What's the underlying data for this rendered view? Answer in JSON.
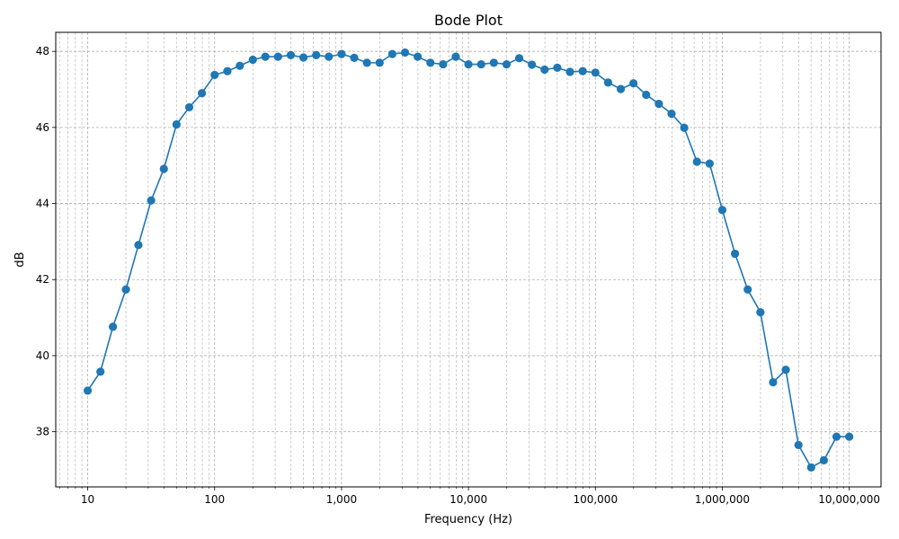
{
  "chart_data": {
    "type": "line",
    "title": "Bode Plot",
    "xlabel": "Frequency (Hz)",
    "ylabel": "dB",
    "xscale": "log",
    "xlim": [
      5.6,
      17800000
    ],
    "ylim": [
      36.55,
      48.5
    ],
    "grid": true,
    "x_ticks": [
      {
        "value": 10,
        "label": "10"
      },
      {
        "value": 100,
        "label": "100"
      },
      {
        "value": 1000,
        "label": "1,000"
      },
      {
        "value": 10000,
        "label": "10,000"
      },
      {
        "value": 100000,
        "label": "100,000"
      },
      {
        "value": 1000000,
        "label": "1,000,000"
      },
      {
        "value": 10000000,
        "label": "10,000,000"
      }
    ],
    "y_ticks": [
      {
        "value": 38,
        "label": "38"
      },
      {
        "value": 40,
        "label": "40"
      },
      {
        "value": 42,
        "label": "42"
      },
      {
        "value": 44,
        "label": "44"
      },
      {
        "value": 46,
        "label": "46"
      },
      {
        "value": 48,
        "label": "48"
      }
    ],
    "series": [
      {
        "color": "#1f77b4",
        "marker": "circle",
        "x": [
          10,
          12.6,
          15.8,
          20,
          25.1,
          31.6,
          39.8,
          50.1,
          63.1,
          79.4,
          100,
          126,
          158,
          200,
          251,
          316,
          398,
          501,
          631,
          794,
          1000,
          1259,
          1585,
          1995,
          2512,
          3162,
          3981,
          5012,
          6310,
          7943,
          10000,
          12589,
          15849,
          19953,
          25119,
          31623,
          39811,
          50119,
          63096,
          79433,
          100000,
          125893,
          158489,
          199526,
          251189,
          316228,
          398107,
          501187,
          630957,
          794328,
          1000000,
          1258925,
          1584893,
          1995262,
          2511886,
          3162278,
          3981072,
          5011872,
          6309573,
          7943282,
          10000000
        ],
        "y": [
          39.08,
          39.58,
          40.76,
          41.74,
          42.91,
          44.08,
          44.91,
          46.08,
          46.53,
          46.9,
          47.38,
          47.48,
          47.62,
          47.78,
          47.86,
          47.86,
          47.9,
          47.84,
          47.9,
          47.86,
          47.93,
          47.83,
          47.7,
          47.7,
          47.93,
          47.97,
          47.86,
          47.7,
          47.66,
          47.86,
          47.66,
          47.66,
          47.7,
          47.66,
          47.82,
          47.65,
          47.52,
          47.57,
          47.46,
          47.48,
          47.44,
          47.18,
          47.01,
          47.16,
          46.86,
          46.62,
          46.36,
          45.99,
          45.1,
          45.05,
          43.83,
          42.68,
          41.74,
          41.14,
          39.3,
          39.63,
          37.65,
          37.06,
          37.25,
          37.87,
          37.87
        ]
      }
    ]
  }
}
